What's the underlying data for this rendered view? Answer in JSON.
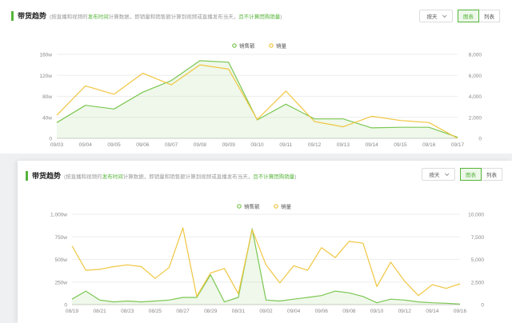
{
  "colors": {
    "sales_amount": "#7cc753",
    "sales_volume": "#f0c641",
    "accent": "#55b43a"
  },
  "panel1": {
    "title": "带货趋势",
    "note_prefix": "(按直播和视频的",
    "note_highlight1": "发布时间",
    "note_middle": "计算数据，即销量和销售额计算到视频或直播发布当天，",
    "note_highlight2": "且不计算团购销量",
    "note_suffix": ")",
    "dropdown_label": "按天",
    "view_chart_label": "图表",
    "view_table_label": "列表"
  },
  "panel2": {
    "title": "带货趋势",
    "note_prefix": "(按直播和视频的",
    "note_highlight1": "发布时间",
    "note_middle": "计算数据，即销量和销售额计算到视频或直播发布当天，",
    "note_highlight2": "且不计算团购销量",
    "note_suffix": ")",
    "dropdown_label": "按天",
    "view_chart_label": "图表",
    "view_table_label": "列表"
  },
  "chart_data": [
    {
      "type": "line",
      "legend_position": "top-center",
      "x": [
        "09/03",
        "09/04",
        "09/05",
        "09/06",
        "09/07",
        "09/08",
        "09/09",
        "09/10",
        "09/11",
        "09/12",
        "09/13",
        "09/14",
        "09/15",
        "09/16",
        "09/17"
      ],
      "y_left_ticks": [
        "0",
        "40w",
        "80w",
        "120w",
        "160w"
      ],
      "y_left_range": [
        0,
        160
      ],
      "y_right_ticks": [
        "0",
        "2,000",
        "4,000",
        "6,000",
        "8,000"
      ],
      "y_right_range": [
        0,
        8000
      ],
      "grid": true,
      "series": [
        {
          "name": "销售额",
          "axis": "left",
          "area": true,
          "values": [
            30,
            63,
            56,
            88,
            110,
            148,
            145,
            35,
            65,
            37,
            37,
            20,
            21,
            21,
            2
          ]
        },
        {
          "name": "销量",
          "axis": "right",
          "area": false,
          "values": [
            2200,
            5000,
            4200,
            6200,
            5100,
            7000,
            6600,
            1800,
            4500,
            1600,
            1100,
            2100,
            1700,
            1500,
            0
          ]
        }
      ]
    },
    {
      "type": "line",
      "legend_position": "top-center",
      "x": [
        "08/19",
        "08/20",
        "08/21",
        "08/22",
        "08/23",
        "08/24",
        "08/25",
        "08/26",
        "08/27",
        "08/28",
        "08/29",
        "08/30",
        "08/31",
        "09/01",
        "09/02",
        "09/03",
        "09/04",
        "09/05",
        "09/06",
        "09/07",
        "09/08",
        "09/09",
        "09/10",
        "09/11",
        "09/12",
        "09/13",
        "09/14",
        "09/15",
        "09/16"
      ],
      "x_tick_labels": [
        "08/19",
        "08/21",
        "08/23",
        "08/25",
        "08/27",
        "08/29",
        "08/31",
        "09/02",
        "09/04",
        "09/06",
        "09/08",
        "09/10",
        "09/12",
        "09/14",
        "09/16"
      ],
      "y_left_ticks": [
        "0",
        "250w",
        "500w",
        "750w",
        "1,000w"
      ],
      "y_left_range": [
        0,
        1000
      ],
      "y_right_ticks": [
        "0",
        "2,500",
        "5,000",
        "7,500",
        "10,000"
      ],
      "y_right_range": [
        0,
        10000
      ],
      "grid": true,
      "series": [
        {
          "name": "销售额",
          "axis": "left",
          "area": true,
          "values": [
            60,
            150,
            50,
            30,
            40,
            30,
            40,
            50,
            80,
            80,
            330,
            30,
            80,
            840,
            50,
            40,
            60,
            80,
            100,
            150,
            130,
            90,
            20,
            60,
            50,
            30,
            20,
            15,
            5
          ]
        },
        {
          "name": "销量",
          "axis": "right",
          "area": false,
          "values": [
            6500,
            3800,
            3900,
            4200,
            4400,
            4200,
            2900,
            4100,
            8500,
            900,
            3500,
            4000,
            1200,
            8300,
            4400,
            2400,
            4300,
            3800,
            6300,
            5200,
            7000,
            6800,
            2000,
            4700,
            2600,
            1000,
            2200,
            1800,
            2300
          ]
        }
      ]
    }
  ]
}
